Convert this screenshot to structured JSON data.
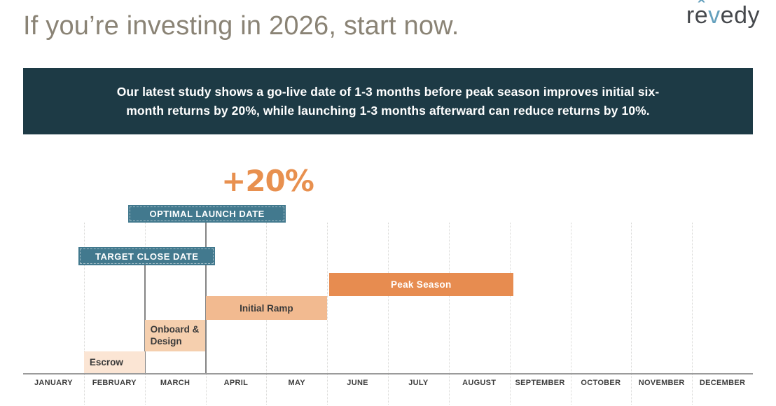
{
  "slide": {
    "title": "If you’re investing in 2026, start now.",
    "logo": {
      "prefix": "r",
      "e": "e",
      "circumflex": "ˆ",
      "v": "v",
      "suffix": "edy"
    }
  },
  "banner": {
    "lines": [
      "Our latest study shows a go-live date of 1-3 months before peak season improves initial six-",
      "month returns by 20%, while launching 1-3 months afterward can reduce returns by 10%."
    ]
  },
  "colors": {
    "banner_bg": "#1d3a45",
    "title_text": "#8a8375",
    "annotation_orange": "#e8904f",
    "teal_bar": "#42798e",
    "peak_orange": "#e78c50",
    "initial_ramp_orange": "#f2ba90",
    "onboard_peach": "#f5cfae",
    "escrow_peach": "#fbe5d4",
    "logo_blue": "#64a0bd"
  },
  "chart_data": {
    "type": "gantt",
    "annotation": "+20%",
    "months": [
      "JANUARY",
      "FEBRUARY",
      "MARCH",
      "APRIL",
      "MAY",
      "JUNE",
      "JULY",
      "AUGUST",
      "SEPTEMBER",
      "OCTOBER",
      "NOVEMBER",
      "DECEMBER"
    ],
    "month_axis_note": "x positions measured in months, 0 = start of January, 12 = end of December",
    "bars": [
      {
        "label": "OPTIMAL LAUNCH DATE",
        "start": 1.73,
        "end": 4.32,
        "color": "#42798e",
        "text_color": "#ffffff"
      },
      {
        "label": "TARGET CLOSE DATE",
        "start": 0.91,
        "end": 3.16,
        "color": "#42798e",
        "text_color": "#ffffff"
      },
      {
        "label": "Peak Season",
        "start": 5.03,
        "end": 8.06,
        "color": "#e78c50",
        "text_color": "#ffffff"
      },
      {
        "label": "Initial Ramp",
        "start": 3.0,
        "end": 5.0,
        "color": "#f2ba90",
        "text_color": "#3a3a3a"
      },
      {
        "label": "Onboard & Design",
        "start": 2.0,
        "end": 3.0,
        "color": "#f5cfae",
        "text_color": "#3a3a3a"
      },
      {
        "label": "Escrow",
        "start": 1.0,
        "end": 2.0,
        "color": "#fbe5d4",
        "text_color": "#3a3a3a"
      }
    ],
    "markers": [
      {
        "for": "TARGET CLOSE DATE",
        "month": 2.0
      },
      {
        "for": "OPTIMAL LAUNCH DATE",
        "month": 3.0
      }
    ]
  }
}
